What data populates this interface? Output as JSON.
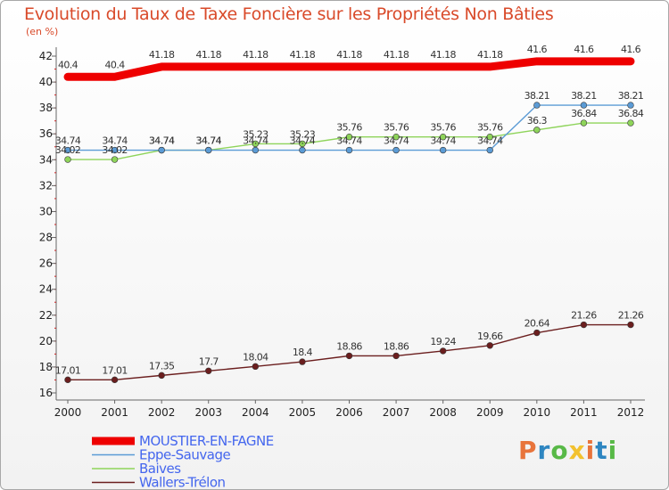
{
  "chart_data": {
    "type": "line",
    "title": "Evolution du Taux de Taxe Foncière sur les Propriétés Non Bâties",
    "subtitle": "(en %)",
    "xlabel": "",
    "ylabel": "",
    "x": [
      "2000",
      "2001",
      "2002",
      "2003",
      "2004",
      "2005",
      "2006",
      "2007",
      "2008",
      "2009",
      "2010",
      "2011",
      "2012"
    ],
    "ylim": [
      16,
      42
    ],
    "yticks": [
      16,
      18,
      20,
      22,
      24,
      26,
      28,
      30,
      32,
      34,
      36,
      38,
      40,
      42
    ],
    "grid": false,
    "legend_position": "bottom-left",
    "series": [
      {
        "name": "MOUSTIER-EN-FAGNE",
        "color": "#ee0000",
        "values": [
          40.4,
          40.4,
          41.18,
          41.18,
          41.18,
          41.18,
          41.18,
          41.18,
          41.18,
          41.18,
          41.6,
          41.6,
          41.6
        ],
        "labels": [
          "40.4",
          "40.4",
          "41.18",
          "41.18",
          "41.18",
          "41.18",
          "41.18",
          "41.18",
          "41.18",
          "41.18",
          "41.6",
          "41.6",
          "41.6"
        ]
      },
      {
        "name": "Eppe-Sauvage",
        "color": "#5b9bd5",
        "values": [
          34.74,
          34.74,
          34.74,
          34.74,
          34.74,
          34.74,
          34.74,
          34.74,
          34.74,
          34.74,
          38.21,
          38.21,
          38.21
        ],
        "labels": [
          "34.74",
          "34.74",
          "34.74",
          "34.74",
          "34.74",
          "34.74",
          "34.74",
          "34.74",
          "34.74",
          "34.74",
          "38.21",
          "38.21",
          "38.21"
        ]
      },
      {
        "name": "Baives",
        "color": "#8ed45a",
        "values": [
          34.02,
          34.02,
          34.74,
          34.74,
          35.23,
          35.23,
          35.76,
          35.76,
          35.76,
          35.76,
          36.3,
          36.84,
          36.84
        ],
        "labels": [
          "34.02",
          "34.02",
          "34.74",
          "34.74",
          "35.23",
          "35.23",
          "35.76",
          "35.76",
          "35.76",
          "35.76",
          "36.3",
          "36.84",
          "36.84"
        ]
      },
      {
        "name": "Wallers-Trélon",
        "color": "#6b1e1e",
        "values": [
          17.01,
          17.01,
          17.35,
          17.7,
          18.04,
          18.4,
          18.86,
          18.86,
          19.24,
          19.66,
          20.64,
          21.26,
          21.26
        ],
        "labels": [
          "17.01",
          "17.01",
          "17.35",
          "17.7",
          "18.04",
          "18.4",
          "18.86",
          "18.86",
          "19.24",
          "19.66",
          "20.64",
          "21.26",
          "21.26"
        ]
      }
    ]
  },
  "logo": {
    "text": "Proxiti",
    "colors": [
      "#e8743b",
      "#2e86c1",
      "#58b947",
      "#f2c12e",
      "#e8743b",
      "#2e86c1",
      "#58b947"
    ]
  }
}
